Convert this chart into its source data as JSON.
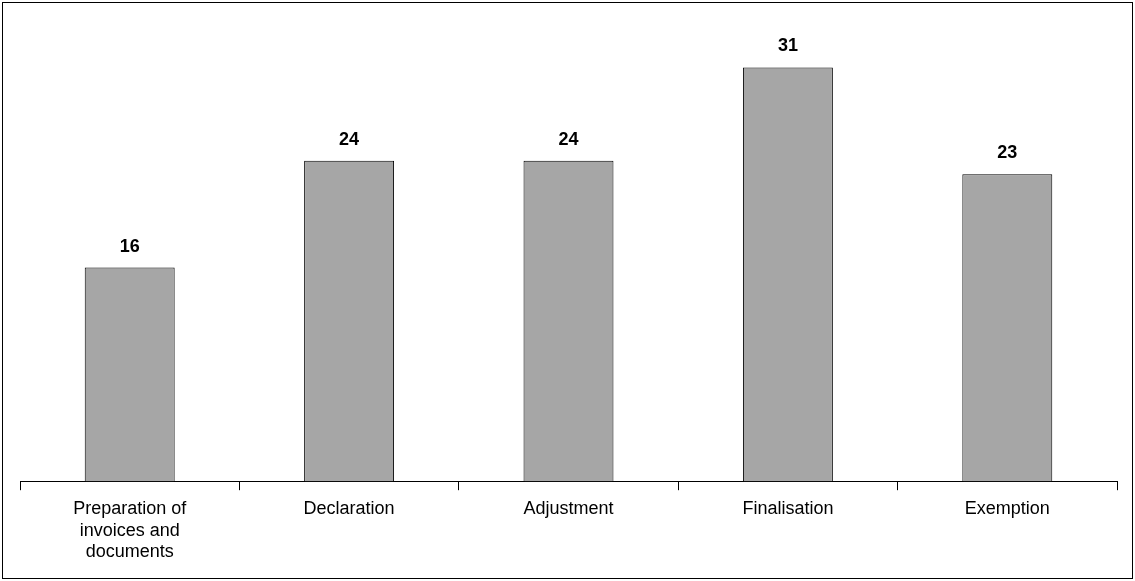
{
  "chart_data": {
    "type": "bar",
    "categories": [
      "Preparation of invoices and documents",
      "Declaration",
      "Adjustment",
      "Finalisation",
      "Exemption"
    ],
    "values": [
      16,
      24,
      24,
      31,
      23
    ],
    "color": "#a6a6a6",
    "data_labels": true,
    "grid": false,
    "legend": false
  }
}
